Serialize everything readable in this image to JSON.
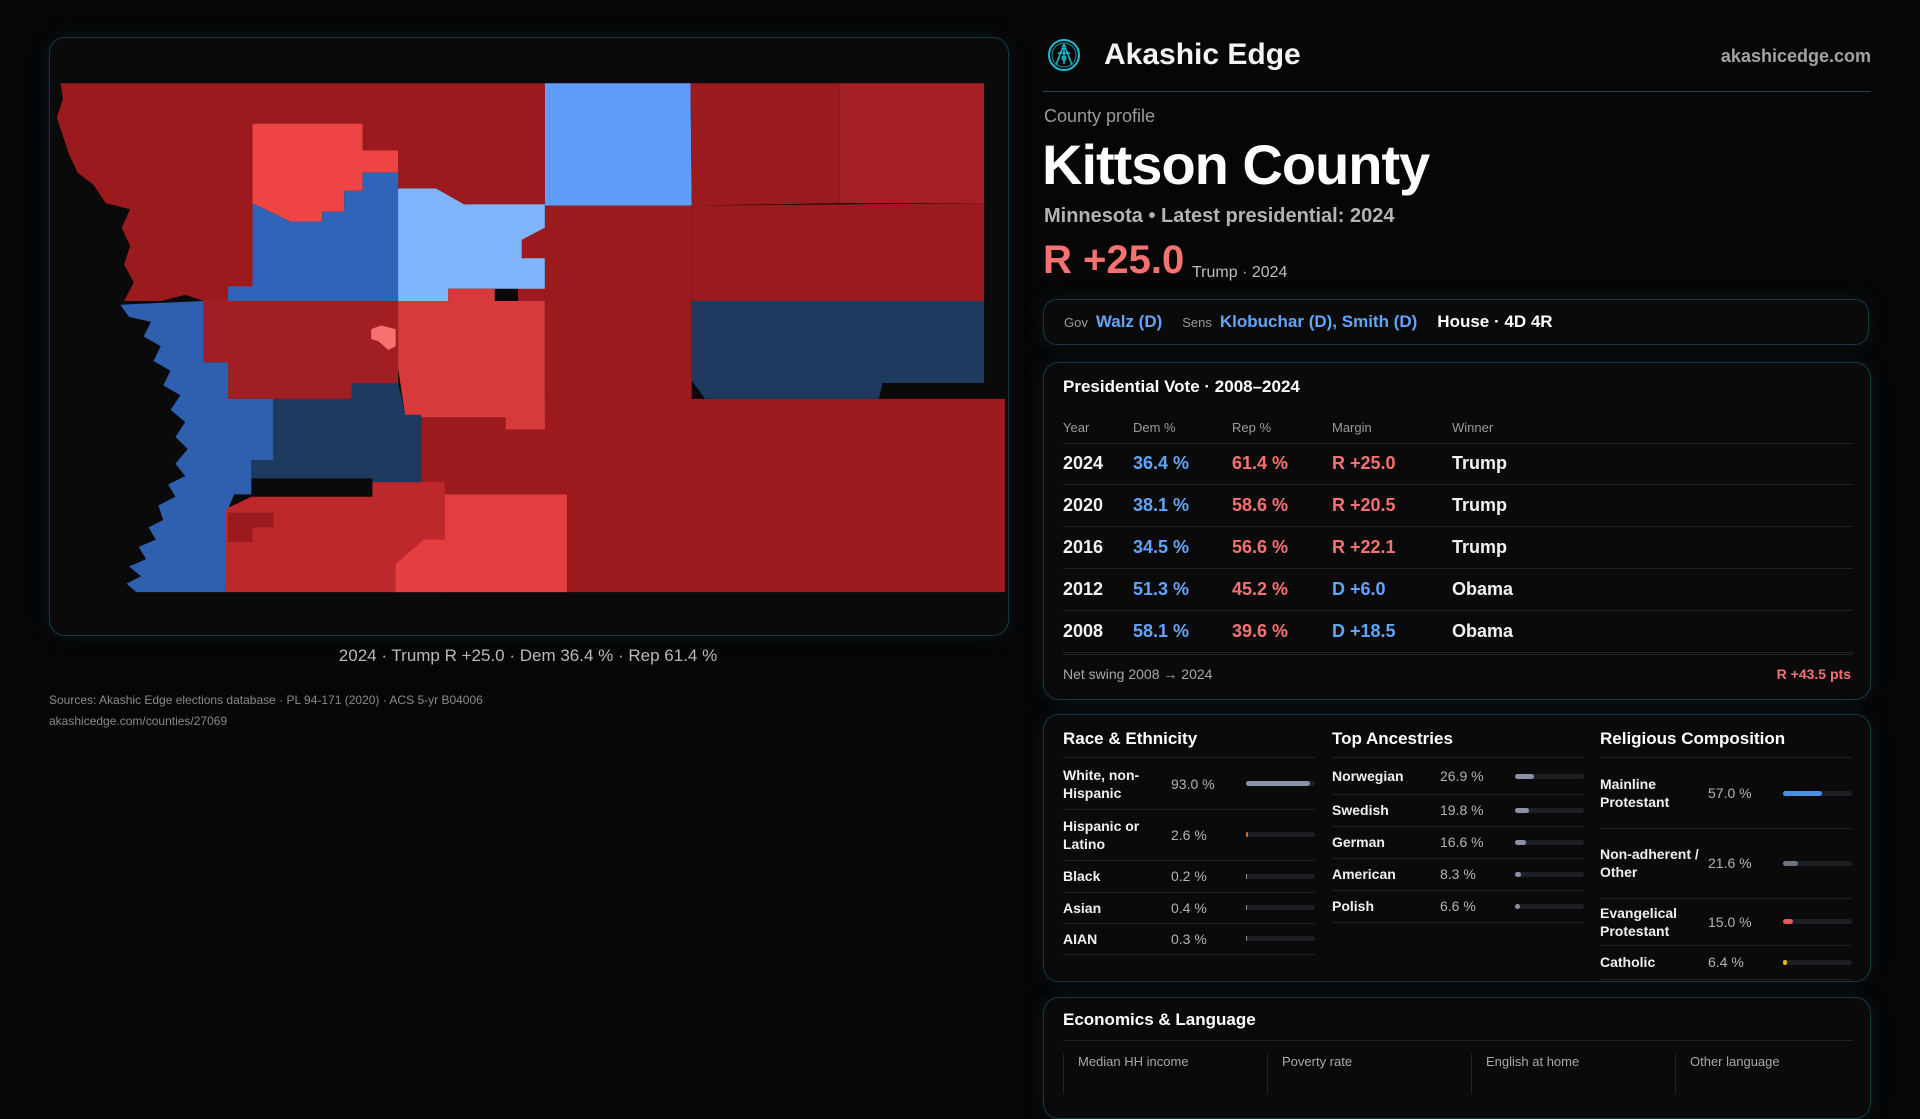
{
  "brand": {
    "name": "Akashic Edge",
    "url": "akashicedge.com",
    "logo_icon": "compass-seal-icon",
    "accent": "#22b8cf"
  },
  "map": {
    "caption": "2024 · Trump R +25.0 · Dem 36.4 % · Rep 61.4 %"
  },
  "profile": {
    "eyebrow": "County profile",
    "title": "Kittson County",
    "subtitle": "Minnesota • Latest presidential: 2024",
    "margin": "R +25.0",
    "margin_sub": "Trump · 2024"
  },
  "reps": {
    "gov_label": "Gov",
    "gov": "Walz (D)",
    "sens_label": "Sens",
    "sens": "Klobuchar (D), Smith (D)",
    "house": "House · 4D 4R"
  },
  "presidential": {
    "title": "Presidential Vote · 2008–2024",
    "headers": [
      "Year",
      "Dem %",
      "Rep %",
      "Margin",
      "Winner"
    ],
    "rows": [
      {
        "year": "2024",
        "dem": "36.4 %",
        "rep": "61.4 %",
        "margin": "R +25.0",
        "party": "R",
        "winner": "Trump"
      },
      {
        "year": "2020",
        "dem": "38.1 %",
        "rep": "58.6 %",
        "margin": "R +20.5",
        "party": "R",
        "winner": "Trump"
      },
      {
        "year": "2016",
        "dem": "34.5 %",
        "rep": "56.6 %",
        "margin": "R +22.1",
        "party": "R",
        "winner": "Trump"
      },
      {
        "year": "2012",
        "dem": "51.3 %",
        "rep": "45.2 %",
        "margin": "D +6.0",
        "party": "D",
        "winner": "Obama"
      },
      {
        "year": "2008",
        "dem": "58.1 %",
        "rep": "39.6 %",
        "margin": "D +18.5",
        "party": "D",
        "winner": "Obama"
      }
    ],
    "swing_label": "Net swing 2008 → 2024",
    "swing_value": "R +43.5 pts"
  },
  "race": {
    "title": "Race & Ethnicity",
    "items": [
      {
        "label": "White, non-Hispanic",
        "value": "93.0 %",
        "pct": 93.0,
        "color": "#8a93a6"
      },
      {
        "label": "Hispanic or Latino",
        "value": "2.6 %",
        "pct": 2.6,
        "color": "#d97706"
      },
      {
        "label": "Black",
        "value": "0.2 %",
        "pct": 0.2,
        "color": "#8a93a6"
      },
      {
        "label": "Asian",
        "value": "0.4 %",
        "pct": 0.4,
        "color": "#8a93a6"
      },
      {
        "label": "AIAN",
        "value": "0.3 %",
        "pct": 0.3,
        "color": "#8a93a6"
      }
    ]
  },
  "ancestry": {
    "title": "Top Ancestries",
    "items": [
      {
        "label": "Norwegian",
        "value": "26.9 %",
        "pct": 26.9,
        "color": "#8a93a6"
      },
      {
        "label": "Swedish",
        "value": "19.8 %",
        "pct": 19.8,
        "color": "#8a93a6"
      },
      {
        "label": "German",
        "value": "16.6 %",
        "pct": 16.6,
        "color": "#8a93a6"
      },
      {
        "label": "American",
        "value": "8.3 %",
        "pct": 8.3,
        "color": "#8a93a6"
      },
      {
        "label": "Polish",
        "value": "6.6 %",
        "pct": 6.6,
        "color": "#8a93a6"
      }
    ]
  },
  "religion": {
    "title": "Religious Composition",
    "items": [
      {
        "label": "Mainline Protestant",
        "value": "57.0 %",
        "pct": 57.0,
        "color": "#4a90e2"
      },
      {
        "label": "Non-adherent / Other",
        "value": "21.6 %",
        "pct": 21.6,
        "color": "#6b7280"
      },
      {
        "label": "Evangelical Protestant",
        "value": "15.0 %",
        "pct": 15.0,
        "color": "#e05a5a"
      },
      {
        "label": "Catholic",
        "value": "6.4 %",
        "pct": 6.4,
        "color": "#eab308"
      }
    ]
  },
  "economics": {
    "title": "Economics & Language",
    "columns": [
      "Median HH income",
      "Poverty rate",
      "English at home",
      "Other language"
    ]
  },
  "sources": {
    "line1": "Sources: Akashic Edge elections database · PL 94-171 (2020) · ACS 5-yr B04006",
    "line2": "akashicedge.com/counties/27069"
  },
  "colors": {
    "dem": "#60a5fa",
    "rep": "#f87171",
    "strong_rep": "#9b1a1e",
    "strong_dem": "#1e3a5f"
  }
}
